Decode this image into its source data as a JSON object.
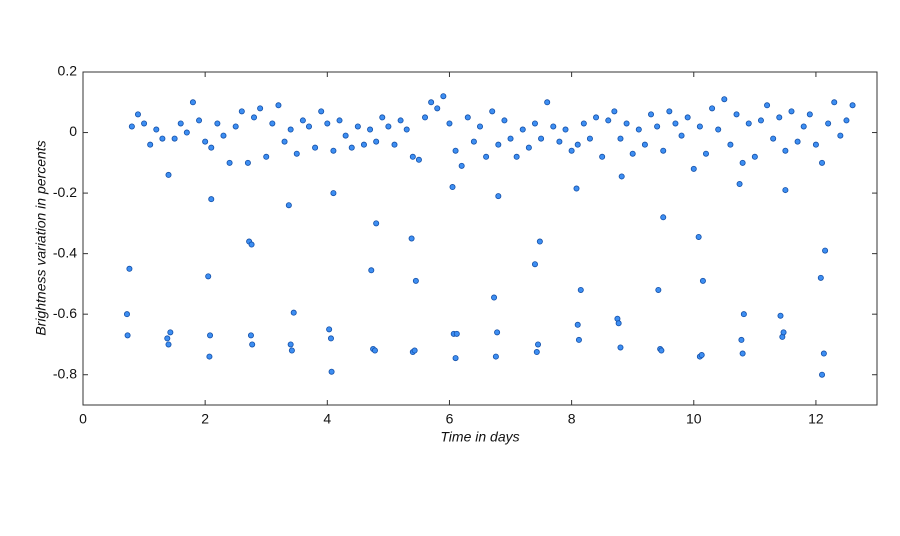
{
  "chart_data": {
    "type": "scatter",
    "x_label": "Time in days",
    "y_label": "Brightness variation in percents",
    "color": "#3d8ef2",
    "xlim": [
      0,
      13
    ],
    "xticks": [
      0,
      2,
      4,
      6,
      8,
      10,
      12
    ],
    "ylim": [
      -0.9,
      0.2
    ],
    "yticks": [
      0.2,
      0,
      -0.2,
      -0.4,
      -0.6,
      -0.8
    ],
    "x": [
      0.8,
      0.9,
      1.0,
      1.1,
      1.2,
      1.3,
      1.4,
      1.5,
      1.6,
      1.7,
      1.8,
      1.9,
      2.0,
      2.1,
      2.2,
      2.3,
      2.4,
      2.5,
      2.6,
      2.7,
      2.8,
      2.9,
      3.0,
      3.1,
      3.2,
      3.3,
      3.4,
      3.5,
      3.6,
      3.7,
      3.8,
      3.9,
      4.0,
      4.1,
      4.2,
      4.3,
      4.4,
      4.5,
      4.6,
      4.7,
      4.8,
      4.9,
      5.0,
      5.1,
      5.2,
      5.3,
      5.4,
      5.5,
      5.6,
      5.7,
      5.8,
      5.9,
      6.0,
      6.1,
      6.2,
      6.3,
      6.4,
      6.5,
      6.6,
      6.7,
      6.8,
      6.9,
      7.0,
      7.1,
      7.2,
      7.3,
      7.4,
      7.5,
      7.6,
      7.7,
      7.8,
      7.9,
      8.0,
      8.1,
      8.2,
      8.3,
      8.4,
      8.5,
      8.6,
      8.7,
      8.8,
      8.9,
      9.0,
      9.1,
      9.2,
      9.3,
      9.4,
      9.5,
      9.6,
      9.7,
      9.8,
      9.9,
      10.0,
      10.1,
      10.2,
      10.3,
      10.4,
      10.5,
      10.6,
      10.7,
      10.8,
      10.9,
      11.0,
      11.1,
      11.2,
      11.3,
      11.4,
      11.5,
      11.6,
      11.7,
      11.8,
      11.9,
      12.0,
      12.1,
      12.2,
      12.3,
      12.4,
      12.5,
      12.6,
      0.72,
      0.73,
      0.76,
      1.38,
      1.4,
      1.43,
      2.05,
      2.07,
      2.08,
      2.1,
      2.72,
      2.76,
      2.75,
      2.77,
      3.37,
      3.4,
      3.42,
      3.45,
      4.03,
      4.06,
      4.07,
      4.1,
      4.72,
      4.75,
      4.78,
      4.8,
      5.38,
      5.4,
      5.43,
      5.45,
      6.05,
      6.07,
      6.1,
      6.12,
      6.73,
      6.76,
      6.78,
      6.8,
      7.4,
      7.43,
      7.45,
      7.48,
      8.08,
      8.1,
      8.12,
      8.15,
      8.75,
      8.77,
      8.8,
      8.82,
      9.42,
      9.45,
      9.47,
      9.5,
      10.08,
      10.1,
      10.13,
      10.15,
      10.78,
      10.8,
      10.82,
      10.75,
      11.42,
      11.45,
      11.47,
      11.5,
      12.08,
      12.1,
      12.13,
      12.15
    ],
    "values": [
      0.02,
      0.06,
      0.03,
      -0.04,
      0.01,
      -0.02,
      -0.14,
      -0.02,
      0.03,
      0,
      0.1,
      0.04,
      -0.03,
      -0.05,
      0.03,
      -0.01,
      -0.1,
      0.02,
      0.07,
      -0.1,
      0.05,
      0.08,
      -0.08,
      0.03,
      0.09,
      -0.03,
      0.01,
      -0.07,
      0.04,
      0.02,
      -0.05,
      0.07,
      0.03,
      -0.06,
      0.04,
      -0.01,
      -0.05,
      0.02,
      -0.04,
      0.01,
      -0.03,
      0.05,
      0.02,
      -0.04,
      0.04,
      0.01,
      -0.08,
      -0.09,
      0.05,
      0.1,
      0.08,
      0.12,
      0.03,
      -0.06,
      -0.11,
      0.05,
      -0.03,
      0.02,
      -0.08,
      0.07,
      -0.04,
      0.04,
      -0.02,
      -0.08,
      0.01,
      -0.05,
      0.03,
      -0.02,
      0.1,
      0.02,
      -0.03,
      0.01,
      -0.06,
      -0.04,
      0.03,
      -0.02,
      0.05,
      -0.08,
      0.04,
      0.07,
      -0.02,
      0.03,
      -0.07,
      0.01,
      -0.04,
      0.06,
      0.02,
      -0.06,
      0.07,
      0.03,
      -0.01,
      0.05,
      -0.12,
      0.02,
      -0.07,
      0.08,
      0.01,
      0.11,
      -0.04,
      0.06,
      -0.1,
      0.03,
      -0.08,
      0.04,
      0.09,
      -0.02,
      0.05,
      -0.06,
      0.07,
      -0.03,
      0.02,
      0.06,
      -0.04,
      -0.1,
      0.03,
      0.1,
      -0.01,
      0.04,
      0.09,
      -0.6,
      -0.67,
      -0.45,
      -0.68,
      -0.7,
      -0.66,
      -0.475,
      -0.74,
      -0.67,
      -0.22,
      -0.36,
      -0.37,
      -0.67,
      -0.7,
      -0.24,
      -0.7,
      -0.72,
      -0.595,
      -0.65,
      -0.68,
      -0.79,
      -0.2,
      -0.455,
      -0.715,
      -0.72,
      -0.3,
      -0.35,
      -0.725,
      -0.72,
      -0.49,
      -0.18,
      -0.665,
      -0.745,
      -0.665,
      -0.545,
      -0.74,
      -0.66,
      -0.21,
      -0.435,
      -0.725,
      -0.7,
      -0.36,
      -0.185,
      -0.635,
      -0.685,
      -0.52,
      -0.615,
      -0.63,
      -0.71,
      -0.145,
      -0.52,
      -0.715,
      -0.72,
      -0.28,
      -0.345,
      -0.74,
      -0.735,
      -0.49,
      -0.685,
      -0.73,
      -0.6,
      -0.17,
      -0.605,
      -0.675,
      -0.66,
      -0.19,
      -0.48,
      -0.8,
      -0.73,
      -0.39
    ]
  }
}
